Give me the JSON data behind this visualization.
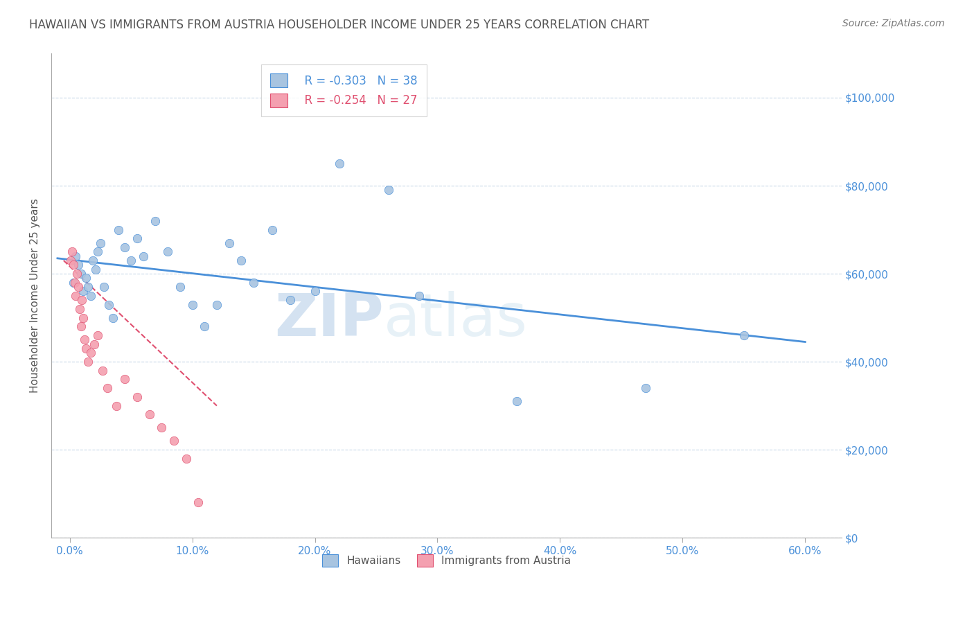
{
  "title": "HAWAIIAN VS IMMIGRANTS FROM AUSTRIA HOUSEHOLDER INCOME UNDER 25 YEARS CORRELATION CHART",
  "source": "Source: ZipAtlas.com",
  "ylabel": "Householder Income Under 25 years",
  "xlabel_vals": [
    0.0,
    10.0,
    20.0,
    30.0,
    40.0,
    50.0,
    60.0
  ],
  "ytick_labels": [
    "$0",
    "$20,000",
    "$40,000",
    "$60,000",
    "$80,000",
    "$100,000"
  ],
  "ytick_vals": [
    0,
    20000,
    40000,
    60000,
    80000,
    100000
  ],
  "ylim": [
    0,
    110000
  ],
  "xlim": [
    -1.5,
    63
  ],
  "hawaiian_color": "#a8c4e0",
  "austria_color": "#f4a0b0",
  "trendline_blue": "#4a90d9",
  "trendline_pink": "#e05070",
  "legend_R_blue": "R = -0.303",
  "legend_N_blue": "N = 38",
  "legend_R_pink": "R = -0.254",
  "legend_N_pink": "N = 27",
  "hawaiians_label": "Hawaiians",
  "austria_label": "Immigrants from Austria",
  "watermark_zip": "ZIP",
  "watermark_atlas": "atlas",
  "hawaiian_points_x": [
    0.3,
    0.5,
    0.7,
    0.9,
    1.1,
    1.3,
    1.5,
    1.7,
    1.9,
    2.1,
    2.3,
    2.5,
    2.8,
    3.2,
    3.5,
    4.0,
    4.5,
    5.0,
    5.5,
    6.0,
    7.0,
    8.0,
    9.0,
    10.0,
    11.0,
    12.0,
    13.0,
    14.0,
    15.0,
    16.5,
    18.0,
    20.0,
    22.0,
    26.0,
    28.5,
    36.5,
    47.0,
    55.0
  ],
  "hawaiian_points_y": [
    58000,
    64000,
    62000,
    60000,
    56000,
    59000,
    57000,
    55000,
    63000,
    61000,
    65000,
    67000,
    57000,
    53000,
    50000,
    70000,
    66000,
    63000,
    68000,
    64000,
    72000,
    65000,
    57000,
    53000,
    48000,
    53000,
    67000,
    63000,
    58000,
    70000,
    54000,
    56000,
    85000,
    79000,
    55000,
    31000,
    34000,
    46000
  ],
  "austria_points_x": [
    0.1,
    0.2,
    0.3,
    0.4,
    0.5,
    0.6,
    0.7,
    0.8,
    0.9,
    1.0,
    1.1,
    1.2,
    1.3,
    1.5,
    1.7,
    2.0,
    2.3,
    2.7,
    3.1,
    3.8,
    4.5,
    5.5,
    6.5,
    7.5,
    8.5,
    9.5,
    10.5
  ],
  "austria_points_y": [
    63000,
    65000,
    62000,
    58000,
    55000,
    60000,
    57000,
    52000,
    48000,
    54000,
    50000,
    45000,
    43000,
    40000,
    42000,
    44000,
    46000,
    38000,
    34000,
    30000,
    36000,
    32000,
    28000,
    25000,
    22000,
    18000,
    8000
  ],
  "blue_trend_x0": -1.0,
  "blue_trend_x1": 60.0,
  "blue_trend_y0": 63500,
  "blue_trend_y1": 44500,
  "pink_trend_x0": -0.5,
  "pink_trend_x1": 12.0,
  "pink_trend_y0": 63000,
  "pink_trend_y1": 30000,
  "grid_color": "#c8d8e8",
  "title_color": "#555555",
  "axis_color": "#4a90d9",
  "bg_color": "#ffffff",
  "marker_size": 80
}
